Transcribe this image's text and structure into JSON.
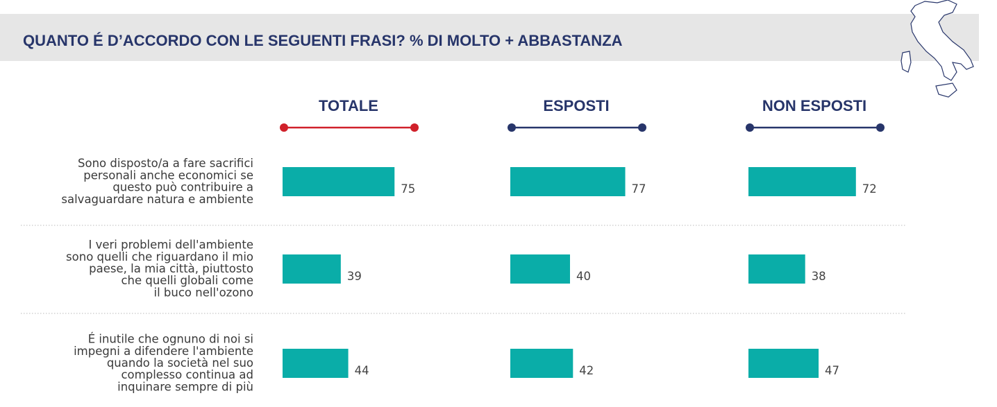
{
  "chart_data": {
    "type": "bar",
    "orientation": "horizontal",
    "title": "QUANTO É D’ACCORDO CON LE SEGUENTI FRASI? % DI MOLTO + ABBASTANZA",
    "categories": [
      [
        "Sono disposto/a a fare sacrifici",
        "personali anche economici se",
        "questo può contribuire a",
        "salvaguardare natura e ambiente"
      ],
      [
        "I veri problemi dell'ambiente",
        "sono quelli che riguardano il mio",
        "paese, la mia città, piuttosto",
        "che quelli globali come",
        "il buco nell'ozono"
      ],
      [
        "É inutile che ognuno di noi si",
        "impegni a difendere l'ambiente",
        "quando la società nel suo",
        "complesso continua ad",
        "inquinare sempre di più"
      ]
    ],
    "series": [
      {
        "name": "TOTALE",
        "color": "#0aada8",
        "header_color": "#d0202a",
        "values": [
          75,
          39,
          44
        ]
      },
      {
        "name": "ESPOSTI",
        "color": "#0aada8",
        "header_color": "#27356a",
        "values": [
          77,
          40,
          42
        ]
      },
      {
        "name": "NON ESPOSTI",
        "color": "#0aada8",
        "header_color": "#27356a",
        "values": [
          72,
          38,
          47
        ]
      }
    ]
  }
}
